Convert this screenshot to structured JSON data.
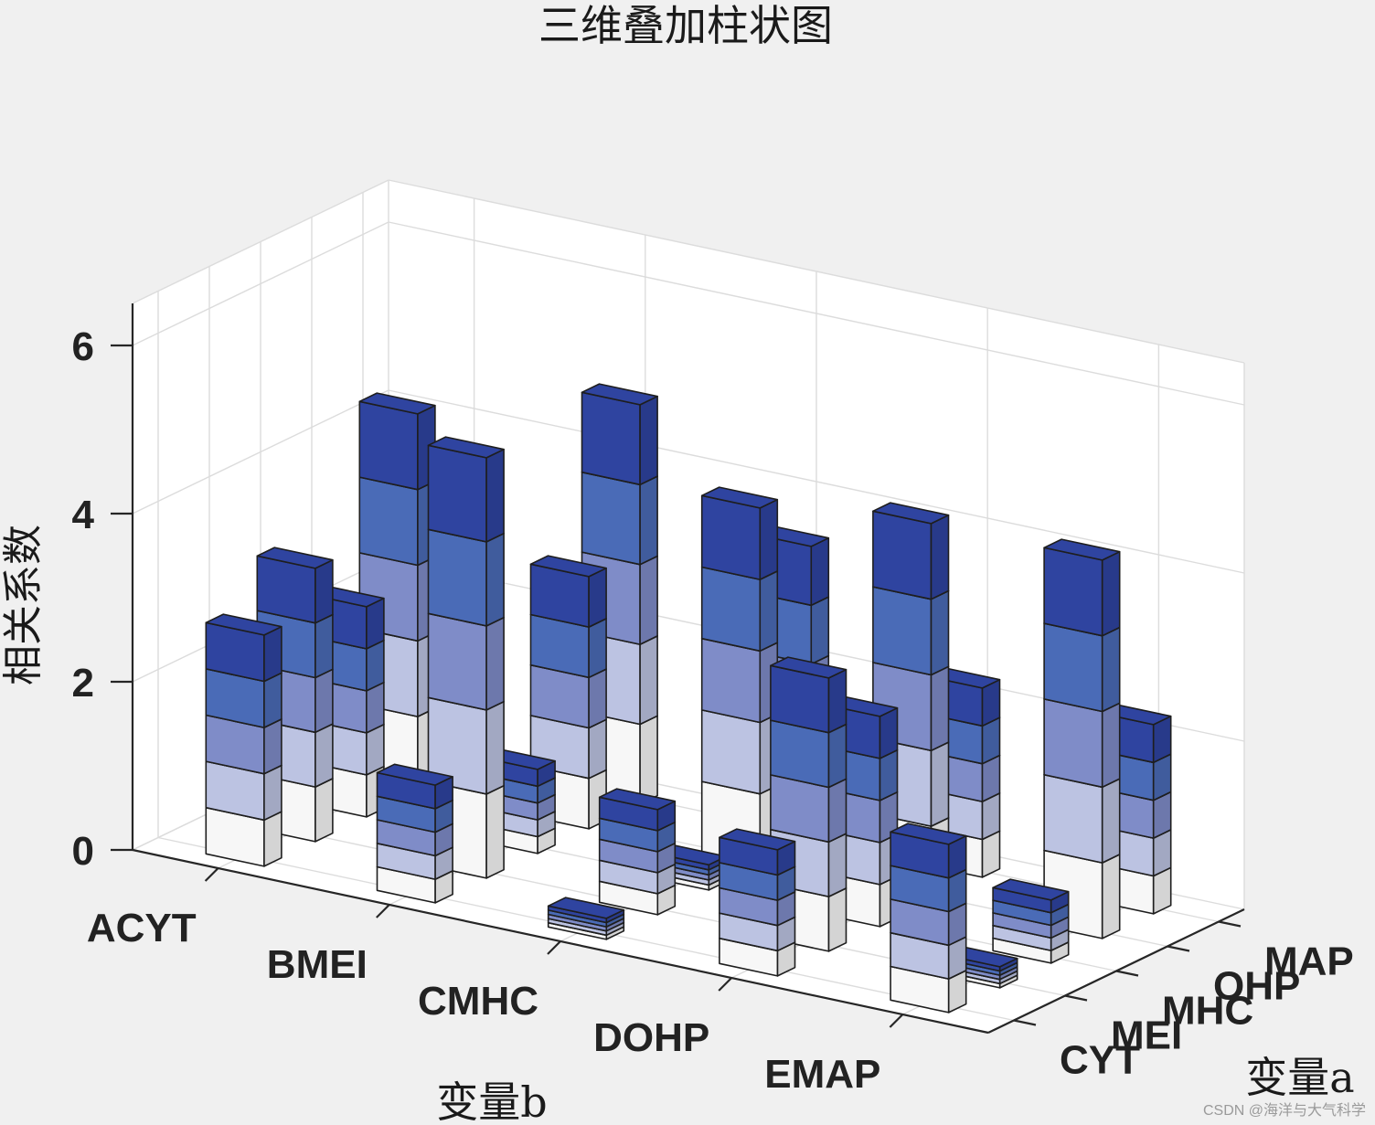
{
  "chart_data": {
    "type": "bar3-stacked",
    "title": "三维叠加柱状图",
    "xlabel": "变量b",
    "ylabel": "变量a",
    "zlabel": "相关系数",
    "x_categories": [
      "ACYT",
      "BMEI",
      "CMHC",
      "DOHP",
      "EMAP"
    ],
    "y_categories": [
      "CYT",
      "MEI",
      "MHC",
      "OHP",
      "MAP"
    ],
    "zlim": [
      0,
      6.5
    ],
    "z_ticks": [
      "0",
      "2",
      "4",
      "6"
    ],
    "grid": true,
    "colors": [
      "#f7f7f7",
      "#bcc3e2",
      "#7f8cc8",
      "#4a6bb7",
      "#2f44a0"
    ],
    "stacks": [
      {
        "x": "ACYT",
        "y": "CYT",
        "segments": [
          0.55,
          0.55,
          0.55,
          0.55,
          0.55
        ]
      },
      {
        "x": "ACYT",
        "y": "MEI",
        "segments": [
          0.65,
          0.65,
          0.65,
          0.65,
          0.65
        ]
      },
      {
        "x": "ACYT",
        "y": "MHC",
        "segments": [
          0.5,
          0.5,
          0.5,
          0.5,
          0.5
        ]
      },
      {
        "x": "ACYT",
        "y": "OHP",
        "segments": [
          0.9,
          0.9,
          0.9,
          0.9,
          0.9
        ]
      },
      {
        "x": "ACYT",
        "y": "MAP",
        "segments": [
          0.05,
          0.05,
          0.05,
          0.05,
          0.05
        ]
      },
      {
        "x": "BMEI",
        "y": "CYT",
        "segments": [
          0.28,
          0.28,
          0.28,
          0.28,
          0.28
        ]
      },
      {
        "x": "BMEI",
        "y": "MEI",
        "segments": [
          1.0,
          1.0,
          1.0,
          1.0,
          1.0
        ]
      },
      {
        "x": "BMEI",
        "y": "MHC",
        "segments": [
          0.2,
          0.2,
          0.2,
          0.2,
          0.2
        ]
      },
      {
        "x": "BMEI",
        "y": "OHP",
        "segments": [
          0.6,
          0.6,
          0.6,
          0.6,
          0.6
        ]
      },
      {
        "x": "BMEI",
        "y": "MAP",
        "segments": [
          0.95,
          0.95,
          0.95,
          0.95,
          0.95
        ]
      },
      {
        "x": "CMHC",
        "y": "CYT",
        "segments": [
          0.05,
          0.05,
          0.05,
          0.05,
          0.05
        ]
      },
      {
        "x": "CMHC",
        "y": "MEI",
        "segments": [
          0.25,
          0.25,
          0.25,
          0.25,
          0.25
        ]
      },
      {
        "x": "CMHC",
        "y": "MHC",
        "segments": [
          0.06,
          0.06,
          0.06,
          0.06,
          0.06
        ]
      },
      {
        "x": "CMHC",
        "y": "OHP",
        "segments": [
          0.85,
          0.85,
          0.85,
          0.85,
          0.85
        ]
      },
      {
        "x": "CMHC",
        "y": "MAP",
        "segments": [
          0.7,
          0.7,
          0.7,
          0.7,
          0.7
        ]
      },
      {
        "x": "DOHP",
        "y": "CYT",
        "segments": [
          0.3,
          0.3,
          0.3,
          0.3,
          0.3
        ]
      },
      {
        "x": "DOHP",
        "y": "MEI",
        "segments": [
          0.65,
          0.65,
          0.65,
          0.65,
          0.65
        ]
      },
      {
        "x": "DOHP",
        "y": "MHC",
        "segments": [
          0.5,
          0.5,
          0.5,
          0.5,
          0.5
        ]
      },
      {
        "x": "DOHP",
        "y": "OHP",
        "segments": [
          0.9,
          0.9,
          0.9,
          0.9,
          0.9
        ]
      },
      {
        "x": "DOHP",
        "y": "MAP",
        "segments": [
          0.45,
          0.45,
          0.45,
          0.45,
          0.45
        ]
      },
      {
        "x": "EMAP",
        "y": "CYT",
        "segments": [
          0.4,
          0.4,
          0.4,
          0.4,
          0.4
        ]
      },
      {
        "x": "EMAP",
        "y": "MEI",
        "segments": [
          0.05,
          0.05,
          0.05,
          0.05,
          0.05
        ]
      },
      {
        "x": "EMAP",
        "y": "MHC",
        "segments": [
          0.15,
          0.15,
          0.15,
          0.15,
          0.15
        ]
      },
      {
        "x": "EMAP",
        "y": "OHP",
        "segments": [
          0.9,
          0.9,
          0.9,
          0.9,
          0.9
        ]
      },
      {
        "x": "EMAP",
        "y": "MAP",
        "segments": [
          0.45,
          0.45,
          0.45,
          0.45,
          0.45
        ]
      }
    ]
  },
  "watermark": "CSDN @海洋与大气科学"
}
